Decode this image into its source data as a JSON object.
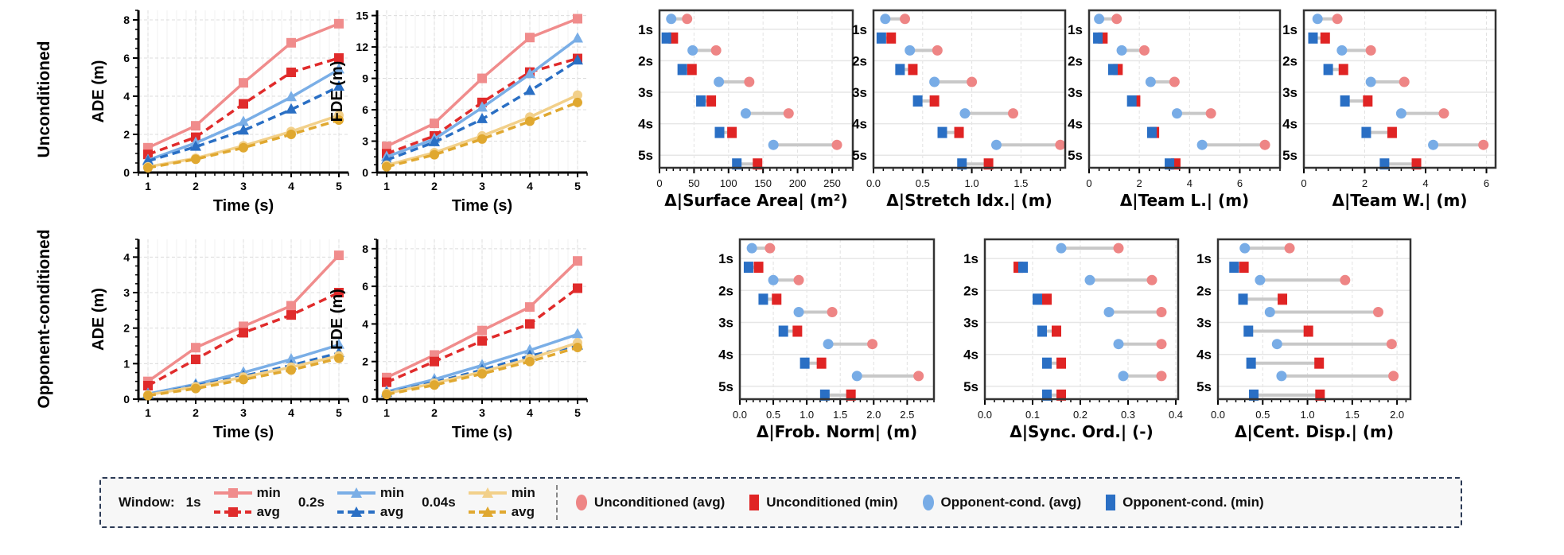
{
  "row_labels": [
    "Unconditioned",
    "Opponent-conditioned"
  ],
  "colors": {
    "1s_min": "#f08c8c",
    "1s_avg": "#e02b2b",
    "0.2s_min": "#7aaee6",
    "0.2s_avg": "#2a6fc4",
    "0.04s_min": "#f2d08a",
    "0.04s_avg": "#e0a830",
    "unc_avg": "#ee8585",
    "unc_min": "#e02424",
    "opp_avg": "#78ace6",
    "opp_min": "#2a6fc4"
  },
  "legend": {
    "window_label": "Window:",
    "groups": [
      {
        "label": "1s",
        "min": "min",
        "avg": "avg",
        "marker": "square"
      },
      {
        "label": "0.2s",
        "min": "min",
        "avg": "avg",
        "marker": "triangle"
      },
      {
        "label": "0.04s",
        "min": "min",
        "avg": "avg",
        "marker": "circle"
      }
    ],
    "markers": [
      "Unconditioned (avg)",
      "Unconditioned (min)",
      "Opponent-cond. (avg)",
      "Opponent-cond. (min)"
    ]
  },
  "chart_data": [
    {
      "type": "line",
      "row": "Unconditioned",
      "ylabel": "ADE (m)",
      "xlabel": "Time (s)",
      "x": [
        1,
        2,
        3,
        4,
        5
      ],
      "xticks": [
        "1",
        "2",
        "3",
        "4",
        "5"
      ],
      "xlim": [
        0.8,
        5.2
      ],
      "ylim": [
        0,
        8.5
      ],
      "yticks": [
        "0",
        "2",
        "4",
        "6",
        "8"
      ],
      "grid": true,
      "series": [
        {
          "name": "1s min",
          "style": "solid",
          "marker": "square",
          "color": "#f08c8c",
          "values": [
            1.3,
            2.45,
            4.7,
            6.8,
            7.8
          ]
        },
        {
          "name": "1s avg",
          "style": "dashed",
          "marker": "square",
          "color": "#e02b2b",
          "values": [
            0.95,
            1.85,
            3.6,
            5.25,
            6.0
          ]
        },
        {
          "name": "0.2s min",
          "style": "solid",
          "marker": "triangle",
          "color": "#7aaee6",
          "values": [
            0.65,
            1.55,
            2.65,
            3.95,
            5.4
          ]
        },
        {
          "name": "0.2s avg",
          "style": "dashed",
          "marker": "triangle",
          "color": "#2a6fc4",
          "values": [
            0.6,
            1.35,
            2.2,
            3.3,
            4.5
          ]
        },
        {
          "name": "0.04s min",
          "style": "solid",
          "marker": "circle",
          "color": "#f2d08a",
          "values": [
            0.3,
            0.75,
            1.4,
            2.15,
            3.0
          ]
        },
        {
          "name": "0.04s avg",
          "style": "dashed",
          "marker": "circle",
          "color": "#e0a830",
          "values": [
            0.25,
            0.7,
            1.3,
            2.0,
            2.75
          ]
        }
      ]
    },
    {
      "type": "line",
      "row": "Unconditioned",
      "ylabel": "FDE (m)",
      "xlabel": "Time (s)",
      "x": [
        1,
        2,
        3,
        4,
        5
      ],
      "xticks": [
        "1",
        "2",
        "3",
        "4",
        "5"
      ],
      "xlim": [
        0.8,
        5.2
      ],
      "ylim": [
        0,
        15.5
      ],
      "yticks": [
        "0",
        "3",
        "6",
        "9",
        "12",
        "15"
      ],
      "grid": true,
      "series": [
        {
          "name": "1s min",
          "style": "solid",
          "marker": "square",
          "color": "#f08c8c",
          "values": [
            2.5,
            4.7,
            9.0,
            12.9,
            14.7
          ]
        },
        {
          "name": "1s avg",
          "style": "dashed",
          "marker": "square",
          "color": "#e02b2b",
          "values": [
            1.8,
            3.5,
            6.7,
            9.6,
            10.9
          ]
        },
        {
          "name": "0.2s min",
          "style": "solid",
          "marker": "triangle",
          "color": "#7aaee6",
          "values": [
            1.5,
            3.2,
            6.2,
            9.4,
            12.8
          ]
        },
        {
          "name": "0.2s avg",
          "style": "dashed",
          "marker": "triangle",
          "color": "#2a6fc4",
          "values": [
            1.2,
            2.9,
            5.1,
            7.8,
            10.7
          ]
        },
        {
          "name": "0.04s min",
          "style": "solid",
          "marker": "circle",
          "color": "#f2d08a",
          "values": [
            0.7,
            1.9,
            3.5,
            5.3,
            7.4
          ]
        },
        {
          "name": "0.04s avg",
          "style": "dashed",
          "marker": "circle",
          "color": "#e0a830",
          "values": [
            0.55,
            1.7,
            3.2,
            4.9,
            6.7
          ]
        }
      ]
    },
    {
      "type": "line",
      "row": "Opponent-conditioned",
      "ylabel": "ADE (m)",
      "xlabel": "Time (s)",
      "x": [
        1,
        2,
        3,
        4,
        5
      ],
      "xticks": [
        "1",
        "2",
        "3",
        "4",
        "5"
      ],
      "xlim": [
        0.8,
        5.2
      ],
      "ylim": [
        0,
        4.5
      ],
      "yticks": [
        "0",
        "1",
        "2",
        "3",
        "4"
      ],
      "grid": true,
      "series": [
        {
          "name": "1s min",
          "style": "solid",
          "marker": "square",
          "color": "#f08c8c",
          "values": [
            0.5,
            1.45,
            2.05,
            2.63,
            4.05
          ]
        },
        {
          "name": "1s avg",
          "style": "dashed",
          "marker": "square",
          "color": "#e02b2b",
          "values": [
            0.38,
            1.12,
            1.87,
            2.37,
            3.0
          ]
        },
        {
          "name": "0.2s min",
          "style": "solid",
          "marker": "triangle",
          "color": "#7aaee6",
          "values": [
            0.15,
            0.42,
            0.75,
            1.12,
            1.53
          ]
        },
        {
          "name": "0.2s avg",
          "style": "dashed",
          "marker": "triangle",
          "color": "#2a6fc4",
          "values": [
            0.12,
            0.38,
            0.65,
            0.95,
            1.3
          ]
        },
        {
          "name": "0.04s min",
          "style": "solid",
          "marker": "circle",
          "color": "#f2d08a",
          "values": [
            0.12,
            0.35,
            0.62,
            0.9,
            1.22
          ]
        },
        {
          "name": "0.04s avg",
          "style": "dashed",
          "marker": "circle",
          "color": "#e0a830",
          "values": [
            0.1,
            0.3,
            0.55,
            0.82,
            1.15
          ]
        }
      ]
    },
    {
      "type": "line",
      "row": "Opponent-conditioned",
      "ylabel": "FDE (m)",
      "xlabel": "Time (s)",
      "x": [
        1,
        2,
        3,
        4,
        5
      ],
      "xticks": [
        "1",
        "2",
        "3",
        "4",
        "5"
      ],
      "xlim": [
        0.8,
        5.2
      ],
      "ylim": [
        0,
        8.5
      ],
      "yticks": [
        "0",
        "2",
        "4",
        "6",
        "8"
      ],
      "grid": true,
      "series": [
        {
          "name": "1s min",
          "style": "solid",
          "marker": "square",
          "color": "#f08c8c",
          "values": [
            1.15,
            2.35,
            3.65,
            4.9,
            7.35
          ]
        },
        {
          "name": "1s avg",
          "style": "dashed",
          "marker": "square",
          "color": "#e02b2b",
          "values": [
            0.9,
            2.0,
            3.1,
            4.0,
            5.9
          ]
        },
        {
          "name": "0.2s min",
          "style": "solid",
          "marker": "triangle",
          "color": "#7aaee6",
          "values": [
            0.4,
            1.05,
            1.8,
            2.6,
            3.45
          ]
        },
        {
          "name": "0.2s avg",
          "style": "dashed",
          "marker": "triangle",
          "color": "#2a6fc4",
          "values": [
            0.33,
            0.9,
            1.55,
            2.3,
            2.85
          ]
        },
        {
          "name": "0.04s min",
          "style": "solid",
          "marker": "circle",
          "color": "#f2d08a",
          "values": [
            0.3,
            0.85,
            1.45,
            2.15,
            3.0
          ]
        },
        {
          "name": "0.04s avg",
          "style": "dashed",
          "marker": "circle",
          "color": "#e0a830",
          "values": [
            0.25,
            0.75,
            1.35,
            2.0,
            2.75
          ]
        }
      ]
    },
    {
      "type": "dumbbell",
      "xlabel": "Δ|Surface Area| (m²)",
      "categories": [
        "1s",
        "2s",
        "3s",
        "4s",
        "5s"
      ],
      "xlim": [
        0,
        280
      ],
      "xticks": [
        "0",
        "50",
        "100",
        "150",
        "200",
        "250"
      ],
      "series": [
        {
          "name": "Unconditioned (avg)",
          "values": [
            40,
            82,
            130,
            187,
            257
          ]
        },
        {
          "name": "Opponent-cond. (avg)",
          "values": [
            17,
            48,
            86,
            125,
            165
          ]
        },
        {
          "name": "Unconditioned (min)",
          "values": [
            20,
            47,
            75,
            105,
            142
          ]
        },
        {
          "name": "Opponent-cond. (min)",
          "values": [
            10,
            33,
            60,
            87,
            112
          ]
        }
      ]
    },
    {
      "type": "dumbbell",
      "xlabel": "Δ|Stretch Idx.| (m)",
      "categories": [
        "1s",
        "2s",
        "3s",
        "4s",
        "5s"
      ],
      "xlim": [
        0,
        1.95
      ],
      "xticks": [
        "0.0",
        "0.5",
        "1.0",
        "1.5"
      ],
      "series": [
        {
          "name": "Unconditioned (avg)",
          "values": [
            0.32,
            0.65,
            1.0,
            1.42,
            1.9
          ]
        },
        {
          "name": "Opponent-cond. (avg)",
          "values": [
            0.12,
            0.37,
            0.62,
            0.93,
            1.25
          ]
        },
        {
          "name": "Unconditioned (min)",
          "values": [
            0.18,
            0.4,
            0.62,
            0.87,
            1.17
          ]
        },
        {
          "name": "Opponent-cond. (min)",
          "values": [
            0.08,
            0.27,
            0.45,
            0.7,
            0.9
          ]
        }
      ]
    },
    {
      "type": "dumbbell",
      "xlabel": "Δ|Team L.| (m)",
      "categories": [
        "1s",
        "2s",
        "3s",
        "4s",
        "5s"
      ],
      "xlim": [
        0,
        7.6
      ],
      "xticks": [
        "0",
        "2",
        "4",
        "6"
      ],
      "series": [
        {
          "name": "Unconditioned (avg)",
          "values": [
            1.1,
            2.2,
            3.4,
            4.85,
            7.0
          ]
        },
        {
          "name": "Opponent-cond. (avg)",
          "values": [
            0.4,
            1.3,
            2.45,
            3.5,
            4.5
          ]
        },
        {
          "name": "Unconditioned (min)",
          "values": [
            0.55,
            1.15,
            1.85,
            2.6,
            3.45
          ]
        },
        {
          "name": "Opponent-cond. (min)",
          "values": [
            0.35,
            0.95,
            1.7,
            2.5,
            3.2
          ]
        }
      ]
    },
    {
      "type": "dumbbell",
      "xlabel": "Δ|Team W.| (m)",
      "categories": [
        "1s",
        "2s",
        "3s",
        "4s",
        "5s"
      ],
      "xlim": [
        0,
        6.3
      ],
      "xticks": [
        "0",
        "2",
        "4",
        "6"
      ],
      "series": [
        {
          "name": "Unconditioned (avg)",
          "values": [
            1.1,
            2.2,
            3.3,
            4.6,
            5.9
          ]
        },
        {
          "name": "Opponent-cond. (avg)",
          "values": [
            0.45,
            1.25,
            2.2,
            3.2,
            4.25
          ]
        },
        {
          "name": "Unconditioned (min)",
          "values": [
            0.7,
            1.3,
            2.1,
            2.9,
            3.7
          ]
        },
        {
          "name": "Opponent-cond. (min)",
          "values": [
            0.3,
            0.8,
            1.35,
            2.05,
            2.65
          ]
        }
      ]
    },
    {
      "type": "dumbbell",
      "xlabel": "Δ|Frob. Norm| (m)",
      "categories": [
        "1s",
        "2s",
        "3s",
        "4s",
        "5s"
      ],
      "xlim": [
        0,
        2.9
      ],
      "xticks": [
        "0.0",
        "0.5",
        "1.0",
        "1.5",
        "2.0",
        "2.5"
      ],
      "series": [
        {
          "name": "Unconditioned (avg)",
          "values": [
            0.45,
            0.88,
            1.38,
            1.98,
            2.67
          ]
        },
        {
          "name": "Opponent-cond. (avg)",
          "values": [
            0.18,
            0.5,
            0.88,
            1.32,
            1.75
          ]
        },
        {
          "name": "Unconditioned (min)",
          "values": [
            0.28,
            0.55,
            0.86,
            1.22,
            1.66
          ]
        },
        {
          "name": "Opponent-cond. (min)",
          "values": [
            0.13,
            0.35,
            0.65,
            0.97,
            1.27
          ]
        }
      ]
    },
    {
      "type": "dumbbell",
      "xlabel": "Δ|Sync. Ord.| (-)",
      "categories": [
        "1s",
        "2s",
        "3s",
        "4s",
        "5s"
      ],
      "xlim": [
        0,
        0.405
      ],
      "xticks": [
        "0.0",
        "0.1",
        "0.2",
        "0.3",
        "0.4"
      ],
      "series": [
        {
          "name": "Unconditioned (avg)",
          "values": [
            0.28,
            0.35,
            0.37,
            0.37,
            0.37
          ]
        },
        {
          "name": "Opponent-cond. (avg)",
          "values": [
            0.16,
            0.22,
            0.26,
            0.28,
            0.29
          ]
        },
        {
          "name": "Unconditioned (min)",
          "values": [
            0.07,
            0.13,
            0.15,
            0.16,
            0.16
          ]
        },
        {
          "name": "Opponent-cond. (min)",
          "values": [
            0.08,
            0.11,
            0.12,
            0.13,
            0.13
          ]
        }
      ]
    },
    {
      "type": "dumbbell",
      "xlabel": "Δ|Cent. Disp.| (m)",
      "categories": [
        "1s",
        "2s",
        "3s",
        "4s",
        "5s"
      ],
      "xlim": [
        0,
        2.15
      ],
      "xticks": [
        "0.0",
        "0.5",
        "1.0",
        "1.5",
        "2.0"
      ],
      "series": [
        {
          "name": "Unconditioned (avg)",
          "values": [
            0.8,
            1.42,
            1.79,
            1.94,
            1.96
          ]
        },
        {
          "name": "Opponent-cond. (avg)",
          "values": [
            0.3,
            0.47,
            0.58,
            0.66,
            0.71
          ]
        },
        {
          "name": "Unconditioned (min)",
          "values": [
            0.29,
            0.72,
            1.01,
            1.13,
            1.14
          ]
        },
        {
          "name": "Opponent-cond. (min)",
          "values": [
            0.18,
            0.28,
            0.34,
            0.37,
            0.4
          ]
        }
      ]
    }
  ]
}
